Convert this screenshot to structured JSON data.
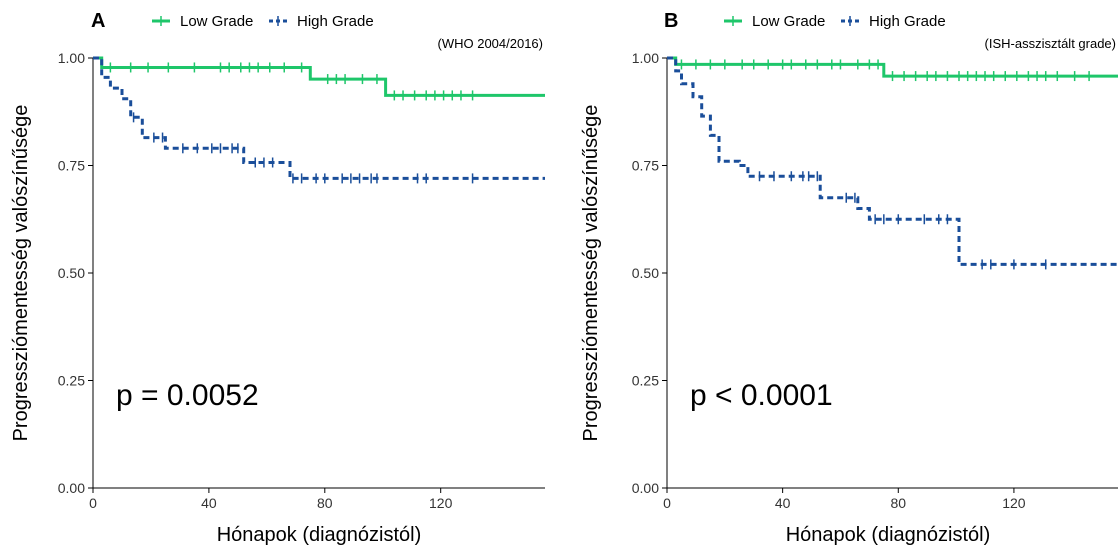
{
  "colors": {
    "low": "#1ec66a",
    "high": "#1a4e9a",
    "axis": "#000000",
    "tick_text": "#333333"
  },
  "chart_data": [
    {
      "type": "line",
      "panel": "A",
      "legend": [
        "Low Grade",
        "High Grade"
      ],
      "legend_position": "top",
      "subtitle": "(WHO 2004/2016)",
      "annotation": "p = 0.0052",
      "xlabel": "Hónapok (diagnózistól)",
      "ylabel": "Progressziómentesség valószínűsége",
      "xlim": [
        0,
        156
      ],
      "ylim": [
        0,
        1
      ],
      "xticks": [
        0,
        40,
        80,
        120
      ],
      "xtick_labels": [
        "0",
        "40",
        "80",
        "120"
      ],
      "yticks": [
        0,
        0.25,
        0.5,
        0.75,
        1
      ],
      "ytick_labels": [
        "0.00",
        "0.25",
        "0.50",
        "0.75",
        "1.00"
      ],
      "grid": false,
      "series": [
        {
          "name": "Low Grade",
          "style": "solid",
          "x": [
            0,
            3,
            3,
            75,
            75,
            101,
            101,
            156
          ],
          "y": [
            1.0,
            1.0,
            0.978,
            0.978,
            0.951,
            0.951,
            0.913,
            0.913
          ],
          "censored": [
            6,
            13,
            19,
            26,
            35,
            44,
            47,
            51,
            54,
            57,
            61,
            66,
            72,
            81,
            84,
            87,
            93,
            98,
            104,
            107,
            111,
            115,
            118,
            121,
            124,
            127,
            131
          ]
        },
        {
          "name": "High Grade",
          "style": "dashed",
          "x": [
            0,
            3,
            3,
            6,
            6,
            10,
            10,
            13,
            13,
            17,
            17,
            25,
            25,
            52,
            52,
            68,
            68,
            156
          ],
          "y": [
            1.0,
            1.0,
            0.955,
            0.955,
            0.93,
            0.93,
            0.905,
            0.905,
            0.862,
            0.862,
            0.815,
            0.815,
            0.79,
            0.79,
            0.757,
            0.757,
            0.72,
            0.72
          ],
          "censored": [
            14,
            21,
            24,
            31,
            36,
            41,
            44,
            48,
            50,
            56,
            59,
            62,
            69,
            72,
            77,
            80,
            86,
            89,
            92,
            96,
            98,
            112,
            115,
            131
          ]
        }
      ]
    },
    {
      "type": "line",
      "panel": "B",
      "legend": [
        "Low Grade",
        "High Grade"
      ],
      "legend_position": "top",
      "subtitle": "(ISH-asszisztált grade)",
      "annotation": "p < 0.0001",
      "xlabel": "Hónapok (diagnózistól)",
      "ylabel": "Progressziómentesség valószínűsége",
      "xlim": [
        0,
        156
      ],
      "ylim": [
        0,
        1
      ],
      "xticks": [
        0,
        40,
        80,
        120
      ],
      "xtick_labels": [
        "0",
        "40",
        "80",
        "120"
      ],
      "yticks": [
        0,
        0.25,
        0.5,
        0.75,
        1
      ],
      "ytick_labels": [
        "0.00",
        "0.25",
        "0.50",
        "0.75",
        "1.00"
      ],
      "grid": false,
      "series": [
        {
          "name": "Low Grade",
          "style": "solid",
          "x": [
            0,
            3,
            3,
            75,
            75,
            156
          ],
          "y": [
            1.0,
            1.0,
            0.985,
            0.985,
            0.958,
            0.958
          ],
          "censored": [
            5,
            10,
            15,
            20,
            26,
            30,
            35,
            40,
            43,
            48,
            52,
            57,
            60,
            66,
            70,
            73,
            78,
            82,
            86,
            90,
            93,
            97,
            101,
            104,
            107,
            110,
            113,
            117,
            121,
            125,
            128,
            131,
            135,
            141,
            146
          ]
        },
        {
          "name": "High Grade",
          "style": "dashed",
          "x": [
            0,
            3,
            3,
            5,
            5,
            9,
            9,
            12,
            12,
            15,
            15,
            18,
            18,
            25,
            25,
            28,
            28,
            53,
            53,
            66,
            66,
            70,
            70,
            101,
            101,
            156
          ],
          "y": [
            1.0,
            1.0,
            0.97,
            0.97,
            0.94,
            0.94,
            0.91,
            0.91,
            0.865,
            0.865,
            0.82,
            0.82,
            0.76,
            0.76,
            0.75,
            0.75,
            0.725,
            0.725,
            0.675,
            0.675,
            0.65,
            0.65,
            0.625,
            0.625,
            0.52,
            0.52
          ],
          "censored": [
            32,
            37,
            43,
            47,
            49,
            52,
            62,
            65,
            72,
            75,
            80,
            89,
            94,
            97,
            109,
            112,
            120,
            131
          ]
        }
      ]
    }
  ]
}
